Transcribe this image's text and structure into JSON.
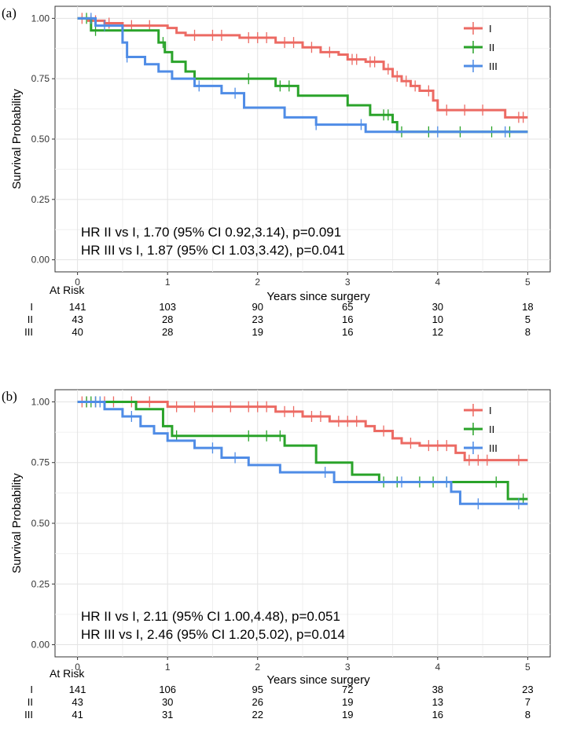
{
  "chart_data": [
    {
      "type": "line",
      "panel_label": "(a)",
      "xlabel": "Years since surgery",
      "ylabel": "Survival Probability",
      "xlim": [
        -0.25,
        5.25
      ],
      "ylim": [
        -0.05,
        1.05
      ],
      "x_ticks": [
        0,
        1,
        2,
        3,
        4,
        5
      ],
      "y_ticks": [
        0,
        0.25,
        0.5,
        0.75,
        1.0
      ],
      "y_tick_labels": [
        "0.00",
        "0.25",
        "0.50",
        "0.75",
        "1.00"
      ],
      "grid": true,
      "legend_position": "top-right",
      "series": [
        {
          "name": "I",
          "color": "#ec6a63",
          "steps": [
            [
              0,
              1.0
            ],
            [
              0.12,
              0.99
            ],
            [
              0.3,
              0.98
            ],
            [
              0.5,
              0.97
            ],
            [
              1.0,
              0.96
            ],
            [
              1.1,
              0.94
            ],
            [
              1.2,
              0.93
            ],
            [
              1.8,
              0.92
            ],
            [
              2.2,
              0.9
            ],
            [
              2.5,
              0.88
            ],
            [
              2.7,
              0.86
            ],
            [
              2.9,
              0.85
            ],
            [
              3.0,
              0.83
            ],
            [
              3.2,
              0.82
            ],
            [
              3.4,
              0.79
            ],
            [
              3.5,
              0.76
            ],
            [
              3.6,
              0.74
            ],
            [
              3.7,
              0.72
            ],
            [
              3.8,
              0.7
            ],
            [
              3.95,
              0.66
            ],
            [
              4.0,
              0.62
            ],
            [
              4.75,
              0.59
            ],
            [
              5.0,
              0.59
            ]
          ],
          "censor_x": [
            0.05,
            0.15,
            0.2,
            0.35,
            0.6,
            0.8,
            1.3,
            1.5,
            1.6,
            1.9,
            2.0,
            2.1,
            2.3,
            2.4,
            2.6,
            2.8,
            3.05,
            3.1,
            3.25,
            3.3,
            3.45,
            3.55,
            3.65,
            3.75,
            3.9,
            4.1,
            4.3,
            4.5,
            4.9,
            4.95
          ]
        },
        {
          "name": "II",
          "color": "#2aa32a",
          "steps": [
            [
              0,
              1.0
            ],
            [
              0.15,
              0.95
            ],
            [
              0.9,
              0.9
            ],
            [
              0.97,
              0.86
            ],
            [
              1.05,
              0.82
            ],
            [
              1.2,
              0.78
            ],
            [
              1.3,
              0.75
            ],
            [
              2.2,
              0.72
            ],
            [
              2.45,
              0.68
            ],
            [
              3.0,
              0.64
            ],
            [
              3.25,
              0.6
            ],
            [
              3.5,
              0.57
            ],
            [
              3.55,
              0.53
            ],
            [
              5.0,
              0.53
            ]
          ],
          "censor_x": [
            0.1,
            0.2,
            0.95,
            1.9,
            2.25,
            2.35,
            3.4,
            3.45,
            3.6,
            3.9,
            4.25,
            4.6,
            4.8
          ]
        },
        {
          "name": "III",
          "color": "#4f8ce6",
          "steps": [
            [
              0,
              1.0
            ],
            [
              0.2,
              0.97
            ],
            [
              0.5,
              0.9
            ],
            [
              0.55,
              0.84
            ],
            [
              0.75,
              0.81
            ],
            [
              0.9,
              0.78
            ],
            [
              1.05,
              0.75
            ],
            [
              1.3,
              0.72
            ],
            [
              1.6,
              0.69
            ],
            [
              1.85,
              0.63
            ],
            [
              2.3,
              0.59
            ],
            [
              2.65,
              0.56
            ],
            [
              3.2,
              0.53
            ],
            [
              5.0,
              0.53
            ]
          ],
          "censor_x": [
            0.15,
            0.3,
            0.55,
            1.35,
            1.75,
            2.65,
            3.15,
            4.0,
            4.75
          ]
        }
      ],
      "annotations": [
        "HR II vs I, 1.70 (95% CI 0.92,3.14), p=0.091",
        "HR III vs I, 1.87 (95% CI 1.03,3.42), p=0.041"
      ],
      "risk_table": {
        "title": "At Risk",
        "rows": [
          {
            "group": "I",
            "values": [
              141,
              103,
              90,
              65,
              30,
              18
            ]
          },
          {
            "group": "II",
            "values": [
              43,
              28,
              23,
              16,
              10,
              5
            ]
          },
          {
            "group": "III",
            "values": [
              40,
              28,
              19,
              16,
              12,
              8
            ]
          }
        ]
      }
    },
    {
      "type": "line",
      "panel_label": "(b)",
      "xlabel": "Years since surgery",
      "ylabel": "Survival Probability",
      "xlim": [
        -0.25,
        5.25
      ],
      "ylim": [
        -0.05,
        1.05
      ],
      "x_ticks": [
        0,
        1,
        2,
        3,
        4,
        5
      ],
      "y_ticks": [
        0,
        0.25,
        0.5,
        0.75,
        1.0
      ],
      "y_tick_labels": [
        "0.00",
        "0.25",
        "0.50",
        "0.75",
        "1.00"
      ],
      "grid": true,
      "legend_position": "top-right",
      "series": [
        {
          "name": "I",
          "color": "#ec6a63",
          "steps": [
            [
              0,
              1.0
            ],
            [
              1.0,
              0.98
            ],
            [
              2.2,
              0.96
            ],
            [
              2.5,
              0.94
            ],
            [
              2.8,
              0.92
            ],
            [
              3.2,
              0.9
            ],
            [
              3.3,
              0.88
            ],
            [
              3.5,
              0.85
            ],
            [
              3.6,
              0.83
            ],
            [
              3.8,
              0.82
            ],
            [
              4.2,
              0.79
            ],
            [
              4.3,
              0.76
            ],
            [
              5.0,
              0.76
            ]
          ],
          "censor_x": [
            0.05,
            0.1,
            0.2,
            0.3,
            0.4,
            0.6,
            0.8,
            1.1,
            1.3,
            1.5,
            1.7,
            1.9,
            2.0,
            2.1,
            2.3,
            2.4,
            2.6,
            2.7,
            2.9,
            3.0,
            3.1,
            3.4,
            3.7,
            3.9,
            4.0,
            4.1,
            4.35,
            4.45,
            4.55,
            4.9
          ]
        },
        {
          "name": "II",
          "color": "#2aa32a",
          "steps": [
            [
              0,
              1.0
            ],
            [
              0.65,
              0.97
            ],
            [
              0.95,
              0.9
            ],
            [
              1.05,
              0.86
            ],
            [
              2.3,
              0.82
            ],
            [
              2.65,
              0.75
            ],
            [
              3.05,
              0.7
            ],
            [
              3.35,
              0.67
            ],
            [
              4.78,
              0.6
            ],
            [
              5.0,
              0.6
            ]
          ],
          "censor_x": [
            0.1,
            0.15,
            0.2,
            1.1,
            1.9,
            2.1,
            2.25,
            3.4,
            3.55,
            3.8,
            3.95,
            4.1,
            4.65,
            4.95
          ]
        },
        {
          "name": "III",
          "color": "#4f8ce6",
          "steps": [
            [
              0,
              1.0
            ],
            [
              0.3,
              0.97
            ],
            [
              0.5,
              0.94
            ],
            [
              0.7,
              0.9
            ],
            [
              0.85,
              0.87
            ],
            [
              1.0,
              0.84
            ],
            [
              1.3,
              0.81
            ],
            [
              1.6,
              0.77
            ],
            [
              1.9,
              0.74
            ],
            [
              2.25,
              0.71
            ],
            [
              2.85,
              0.67
            ],
            [
              4.15,
              0.63
            ],
            [
              4.25,
              0.58
            ],
            [
              5.0,
              0.58
            ]
          ],
          "censor_x": [
            0.2,
            0.25,
            0.6,
            1.5,
            1.75,
            2.75,
            3.6,
            4.1,
            4.45,
            4.9
          ]
        }
      ],
      "annotations": [
        "HR II vs I, 2.11 (95% CI 1.00,4.48), p=0.051",
        "HR III vs I, 2.46 (95% CI 1.20,5.02), p=0.014"
      ],
      "risk_table": {
        "title": "At Risk",
        "rows": [
          {
            "group": "I",
            "values": [
              141,
              106,
              95,
              72,
              38,
              23
            ]
          },
          {
            "group": "II",
            "values": [
              43,
              30,
              26,
              19,
              13,
              7
            ]
          },
          {
            "group": "III",
            "values": [
              41,
              31,
              22,
              19,
              16,
              8
            ]
          }
        ]
      }
    }
  ]
}
